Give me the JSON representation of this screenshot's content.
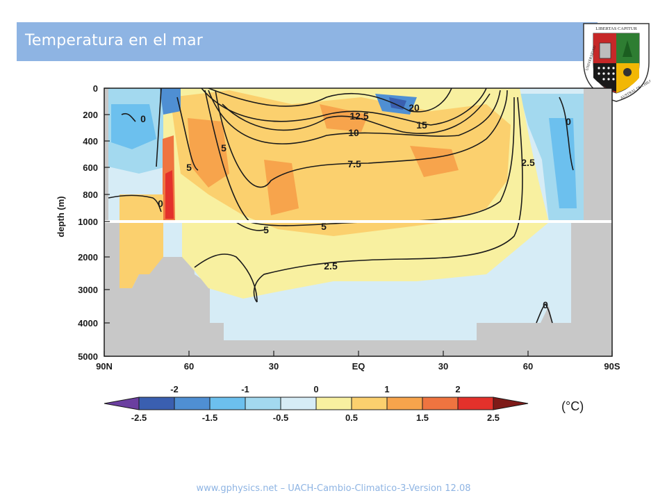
{
  "slide": {
    "title": "Temperatura en el mar",
    "footer": "www.gphysics.net – UACH-Cambio-Climatico-3-Version 12.08",
    "accent_color": "#8eb4e3"
  },
  "crest": {
    "top_text": "LIBERTAS CAPITUR",
    "ring_text_left": "UNIVERSIDAD",
    "ring_text_right": "AUSTRAL DE CHILE",
    "icon": "university-crest-icon"
  },
  "chart_data": {
    "type": "heatmap",
    "title": "",
    "xlabel": "",
    "ylabel": "depth (m)",
    "x_ticks": [
      "90N",
      "60",
      "30",
      "EQ",
      "30",
      "60",
      "90S"
    ],
    "y_ticks_upper": [
      "0",
      "200",
      "400",
      "600",
      "800",
      "1000"
    ],
    "y_ticks_lower": [
      "1000",
      "2000",
      "3000",
      "4000",
      "5000"
    ],
    "contour_labels": [
      "20",
      "15",
      "12.5",
      "10",
      "7.5",
      "5",
      "5",
      "5",
      "5",
      "2.5",
      "2.5",
      "0",
      "0",
      "0",
      "0"
    ],
    "colorbar": {
      "unit": "(°C)",
      "top_labels": [
        "-2",
        "-1",
        "0",
        "1",
        "2"
      ],
      "bottom_labels": [
        "-2.5",
        "-1.5",
        "-0.5",
        "0.5",
        "1.5",
        "2.5"
      ],
      "colors": [
        "#6b3fa0",
        "#3a5fb0",
        "#4f8fd3",
        "#6cc0ee",
        "#a3d9ef",
        "#d6ecf6",
        "#f8f0a0",
        "#fbd06e",
        "#f7a44c",
        "#ef7440",
        "#e3312b",
        "#7e1a18"
      ]
    },
    "land_color": "#c8c8c8"
  }
}
